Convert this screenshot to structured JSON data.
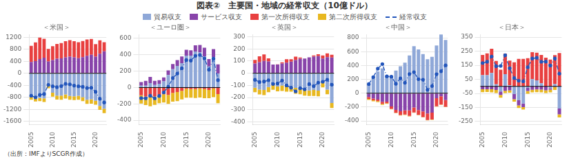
{
  "title": "図表②　主要国・地域の経常収支（10億ドル）",
  "legend": "top",
  "annotations": [
    "（出所：IMFよりSCGR作成）"
  ],
  "chart_data": [
    {
      "type": "bar",
      "title": "＜米国＞",
      "stacked": true,
      "grid": true,
      "categories": [
        "2005",
        null,
        null,
        null,
        null,
        "2010",
        null,
        null,
        null,
        null,
        "2015",
        null,
        null,
        null,
        null,
        "2020",
        null,
        null
      ],
      "ylim": [
        -1700,
        1300
      ],
      "yticks": [
        -1600,
        -1200,
        -800,
        -400,
        0,
        400,
        800,
        1200
      ],
      "series": [
        {
          "name": "貿易収支",
          "color": "#8fa8d8",
          "values": [
            -782,
            -838,
            -821,
            -833,
            -381,
            -647,
            -740,
            -741,
            -702,
            -751,
            -763,
            -750,
            -796,
            -879,
            -864,
            -916,
            -1086,
            -1178
          ]
        },
        {
          "name": "サービス収支",
          "color": "#8844aa",
          "values": [
            379,
            408,
            479,
            524,
            395,
            443,
            487,
            498,
            531,
            557,
            531,
            506,
            540,
            583,
            619,
            559,
            654,
            735
          ]
        },
        {
          "name": "第一次所得収支",
          "color": "#e84040",
          "values": [
            540,
            621,
            714,
            625,
            417,
            462,
            493,
            508,
            543,
            551,
            538,
            532,
            536,
            548,
            527,
            413,
            447,
            304
          ]
        },
        {
          "name": "第二次所得収支",
          "color": "#e8b820",
          "values": [
            -99,
            -99,
            -104,
            -121,
            -113,
            -129,
            -136,
            -136,
            -135,
            -130,
            -131,
            -130,
            -131,
            -139,
            -148,
            -128,
            -130,
            -148
          ]
        },
        {
          "name": "経常収支",
          "type": "line",
          "color": "#2255bb",
          "line_style": "dashdot",
          "marker": "circle",
          "values": [
            -746,
            -802,
            -718,
            -690,
            -384,
            -432,
            -460,
            -426,
            -349,
            -366,
            -408,
            -432,
            -449,
            -490,
            -480,
            -617,
            -848,
            -971
          ]
        }
      ]
    },
    {
      "type": "bar",
      "title": "＜ユーロ圏＞",
      "stacked": true,
      "grid": true,
      "categories": [
        "2005",
        null,
        null,
        null,
        null,
        "2010",
        null,
        null,
        null,
        null,
        "2015",
        null,
        null,
        null,
        null,
        "2020",
        null,
        null
      ],
      "ylim": [
        -450,
        650
      ],
      "yticks": [
        -400,
        -200,
        0,
        200,
        400,
        600
      ],
      "series": [
        {
          "name": "貿易収支",
          "color": "#8fa8d8",
          "values": [
            22,
            22,
            54,
            31,
            46,
            75,
            153,
            225,
            263,
            298,
            389,
            390,
            440,
            430,
            380,
            258,
            370,
            170
          ]
        },
        {
          "name": "サービス収支",
          "color": "#8844aa",
          "values": [
            44,
            60,
            75,
            51,
            43,
            48,
            57,
            63,
            73,
            82,
            72,
            64,
            75,
            90,
            106,
            90,
            100,
            112
          ]
        },
        {
          "name": "第一次所得収支",
          "color": "#e84040",
          "values": [
            -95,
            -110,
            -120,
            -108,
            -92,
            -83,
            -90,
            -65,
            -55,
            -40,
            -15,
            -20,
            -20,
            -10,
            -20,
            -30,
            -10,
            -80
          ]
        },
        {
          "name": "第二次所得収支",
          "color": "#e8b820",
          "values": [
            -100,
            -105,
            -108,
            -105,
            -100,
            -100,
            -110,
            -108,
            -110,
            -105,
            -110,
            -105,
            -108,
            -112,
            -110,
            -100,
            -108,
            -112
          ]
        },
        {
          "name": "経常収支",
          "type": "line",
          "color": "#2255bb",
          "line_style": "dashdot",
          "marker": "circle",
          "values": [
            -130,
            -132,
            -100,
            -132,
            -103,
            -60,
            10,
            115,
            171,
            235,
            336,
            329,
            387,
            398,
            356,
            218,
            352,
            90
          ]
        }
      ]
    },
    {
      "type": "bar",
      "title": "＜英国＞",
      "stacked": true,
      "grid": true,
      "categories": [
        "2005",
        null,
        null,
        null,
        null,
        "2010",
        null,
        null,
        null,
        null,
        "2015",
        null,
        null,
        null,
        null,
        "2020",
        null,
        null
      ],
      "ylim": [
        -420,
        320
      ],
      "yticks": [
        -400,
        -300,
        -200,
        -100,
        0,
        100,
        200,
        300
      ],
      "series": [
        {
          "name": "貿易収支",
          "color": "#8fa8d8",
          "values": [
            -119,
            -135,
            -137,
            -113,
            -92,
            -109,
            -101,
            -107,
            -111,
            -120,
            -124,
            -136,
            -142,
            -137,
            -143,
            -78,
            -135,
            -245
          ]
        },
        {
          "name": "サービス収支",
          "color": "#8844aa",
          "values": [
            80,
            92,
            101,
            97,
            72,
            72,
            80,
            87,
            96,
            109,
            120,
            121,
            131,
            136,
            141,
            121,
            133,
            130
          ]
        },
        {
          "name": "第一次所得収支",
          "color": "#e84040",
          "values": [
            30,
            48,
            54,
            26,
            -6,
            1,
            10,
            28,
            20,
            28,
            10,
            -3,
            0,
            10,
            15,
            25,
            30,
            22
          ]
        },
        {
          "name": "第二次所得収支",
          "color": "#e8b820",
          "values": [
            -36,
            -39,
            -42,
            -42,
            -38,
            -40,
            -45,
            -44,
            -40,
            -48,
            -49,
            -45,
            -44,
            -50,
            -46,
            -38,
            -38,
            -40
          ]
        },
        {
          "name": "経常収支",
          "type": "line",
          "color": "#2255bb",
          "line_style": "dashdot",
          "marker": "circle",
          "values": [
            -54,
            -72,
            -68,
            -57,
            -88,
            -84,
            -60,
            -100,
            -119,
            -149,
            -123,
            -132,
            -89,
            -106,
            -77,
            -70,
            -53,
            -94
          ]
        }
      ]
    },
    {
      "type": "bar",
      "title": "＜中国＞",
      "stacked": true,
      "grid": true,
      "categories": [
        "2005",
        null,
        null,
        null,
        null,
        "2010",
        null,
        null,
        null,
        null,
        "2015",
        null,
        null,
        null,
        null,
        "2020",
        null,
        null
      ],
      "ylim": [
        -450,
        850
      ],
      "yticks": [
        -400,
        -200,
        0,
        200,
        400,
        600,
        800
      ],
      "series": [
        {
          "name": "貿易収支",
          "color": "#8fa8d8",
          "values": [
            134,
            218,
            315,
            360,
            250,
            256,
            328,
            388,
            440,
            544,
            680,
            631,
            565,
            490,
            524,
            690,
            848,
            769
          ]
        },
        {
          "name": "サービス収支",
          "color": "#8844aa",
          "values": [
            -56,
            -77,
            -92,
            -124,
            -121,
            -192,
            -240,
            -261,
            -248,
            -249,
            -207,
            -244,
            -263,
            -292,
            -280,
            -73,
            -45,
            -100
          ]
        },
        {
          "name": "第一次所得収支",
          "color": "#e84040",
          "values": [
            -26,
            -26,
            -23,
            -30,
            -22,
            -34,
            -42,
            -55,
            -59,
            -78,
            -70,
            -68,
            -81,
            -95,
            -100,
            -115,
            -120,
            -95
          ]
        },
        {
          "name": "第二次所得収支",
          "color": "#e8b820",
          "values": [
            -14,
            -13,
            -15,
            -15,
            -11,
            -8,
            -7,
            -7,
            -8,
            -7,
            -7,
            -5,
            -5,
            -5,
            -5,
            -5,
            -5,
            -5
          ]
        },
        {
          "name": "経常収支",
          "type": "line",
          "color": "#2255bb",
          "line_style": "dashdot",
          "marker": "circle",
          "values": [
            132,
            232,
            354,
            420,
            243,
            238,
            136,
            215,
            150,
            277,
            304,
            202,
            195,
            49,
            103,
            274,
            317,
            402
          ]
        }
      ]
    },
    {
      "type": "bar",
      "title": "＜日本＞",
      "stacked": true,
      "grid": true,
      "categories": [
        "2005",
        null,
        null,
        null,
        null,
        "2010",
        null,
        null,
        null,
        null,
        "2015",
        null,
        null,
        null,
        null,
        "2020",
        null,
        null
      ],
      "ylim": [
        -270,
        370
      ],
      "yticks": [
        -250,
        -150,
        -50,
        50,
        150,
        250,
        350
      ],
      "series": [
        {
          "name": "貿易収支",
          "color": "#8fa8d8",
          "values": [
            80,
            79,
            96,
            15,
            -37,
            87,
            8,
            -54,
            -99,
            -122,
            -11,
            52,
            43,
            22,
            -1,
            -13,
            16,
            -157
          ]
        },
        {
          "name": "サービス収支",
          "color": "#8844aa",
          "values": [
            -21,
            -20,
            -21,
            -26,
            -24,
            -31,
            -28,
            -37,
            -36,
            -25,
            -22,
            -24,
            -22,
            -23,
            -27,
            -10,
            -4,
            -42
          ]
        },
        {
          "name": "第一次所得収支",
          "color": "#e84040",
          "values": [
            143,
            155,
            172,
            166,
            118,
            146,
            175,
            171,
            195,
            196,
            200,
            191,
            196,
            202,
            204,
            190,
            206,
            237
          ]
        },
        {
          "name": "第二次所得収支",
          "color": "#e8b820",
          "values": [
            -20,
            -20,
            -22,
            -22,
            -19,
            -17,
            -17,
            -17,
            -18,
            -18,
            -19,
            -19,
            -19,
            -20,
            -20,
            -20,
            -21,
            -22
          ]
        },
        {
          "name": "経常収支",
          "type": "line",
          "color": "#2255bb",
          "line_style": "dashdot",
          "marker": "circle",
          "values": [
            166,
            175,
            212,
            143,
            145,
            221,
            129,
            59,
            40,
            36,
            136,
            198,
            203,
            175,
            176,
            148,
            198,
            90
          ]
        }
      ]
    }
  ]
}
